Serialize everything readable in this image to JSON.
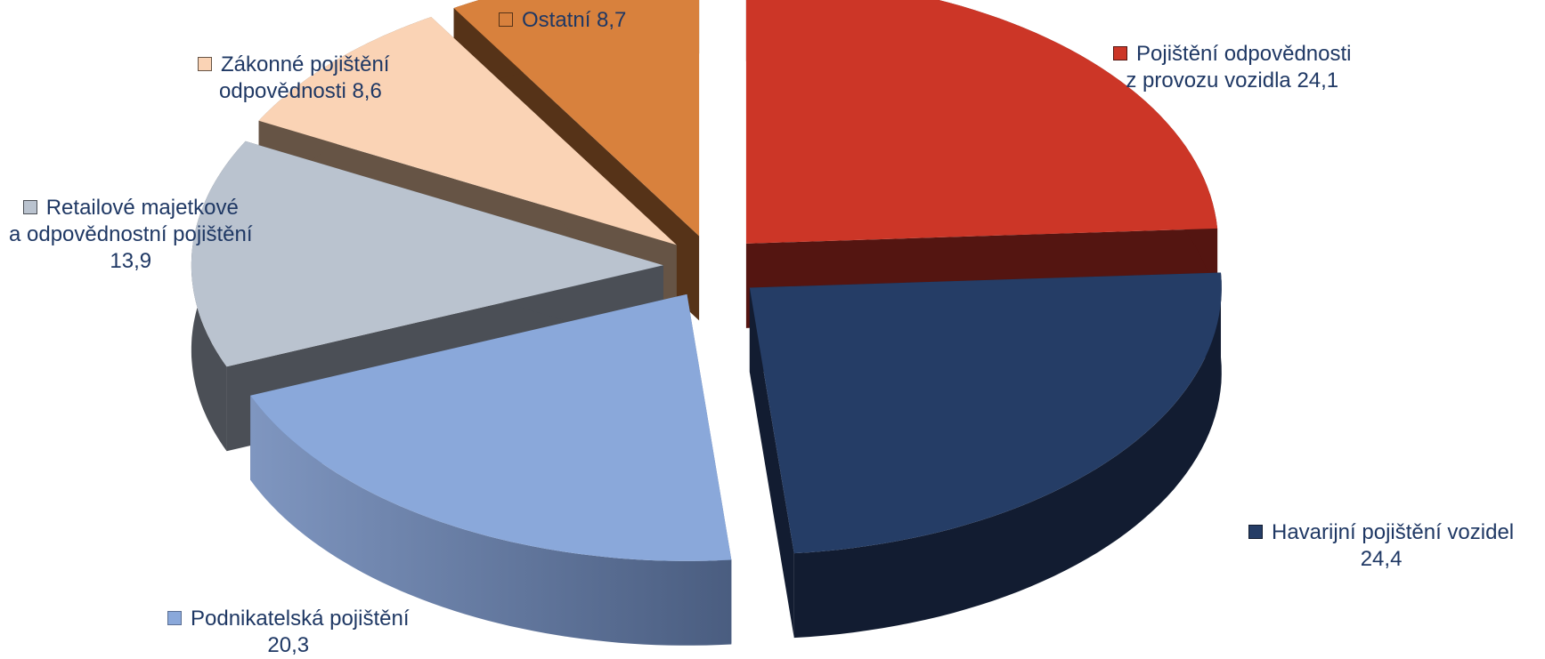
{
  "chart_data": {
    "type": "pie",
    "title": "",
    "style": "exploded-3d",
    "slices": [
      {
        "name": "Pojištění odpovědnosti z provozu vozidla",
        "value": 24.1,
        "value_label": "24,1",
        "label_lines": [
          "Pojištění odpovědnosti",
          "z provozu vozidla  24,1"
        ],
        "color": "#cc3627",
        "side_color": "#541511"
      },
      {
        "name": "Havarijní pojištění vozidel",
        "value": 24.4,
        "value_label": "24,4",
        "label_lines": [
          "Havarijní pojištění vozidel",
          "24,4"
        ],
        "color": "#253d66",
        "side_color": "#121c31"
      },
      {
        "name": "Podnikatelská pojištění",
        "value": 20.3,
        "value_label": "20,3",
        "label_lines": [
          "Podnikatelská pojištění",
          "20,3"
        ],
        "color": "#8aa8da",
        "side_color": "#5b6f93"
      },
      {
        "name": "Retailové majetkové a odpovědnostní pojištění",
        "value": 13.9,
        "value_label": "13,9",
        "label_lines": [
          "Retailové majetkové",
          "a odpovědnostní pojištění",
          "13,9"
        ],
        "color": "#bac3cf",
        "side_color": "#4b4f56"
      },
      {
        "name": "Zákonné pojištění odpovědnosti",
        "value": 8.6,
        "value_label": "8,6",
        "label_lines": [
          "Zákonné pojištění",
          "odpovědnosti  8,6"
        ],
        "color": "#fad3b5",
        "side_color": "#665445"
      },
      {
        "name": "Ostatní",
        "value": 8.7,
        "value_label": "8,7",
        "label_lines": [
          "Ostatní  8,7"
        ],
        "color": "#d8813d",
        "side_color": "#563318"
      }
    ]
  }
}
